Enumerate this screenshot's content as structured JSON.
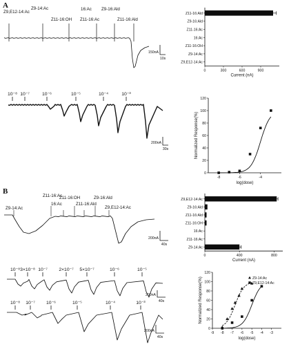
{
  "panel_A": {
    "label": "A",
    "trace_labels": [
      "Z9,E12-14:Ac",
      "Z9-14:Ac",
      "Z11-16:OH",
      "16:Ac",
      "Z11-16:Ac",
      "Z9-16:Ald",
      "Z11-16:Ald"
    ],
    "trace_scale": {
      "amplitude": "150nA",
      "time": "10s"
    },
    "dose_labels": [
      "10⁻⁸",
      "10⁻⁷",
      "10⁻⁶",
      "10⁻⁵",
      "10⁻⁴",
      "10⁻³"
    ],
    "dose_scale": {
      "amplitude": "200nA",
      "time": "30s"
    }
  },
  "panel_B": {
    "label": "B",
    "trace_labels": [
      "Z9-14:Ac",
      "Z11-16:Ac",
      "16:Ac",
      "Z11-16:OH",
      "Z11-16:Ald",
      "Z9-16:Ald",
      "Z9,E12-14:Ac"
    ],
    "trace_scale": {
      "amplitude": "200nA",
      "time": "40s"
    },
    "dose_row1_labels": [
      "10⁻⁸",
      "3×10⁻⁸",
      "10⁻⁷",
      "2×10⁻⁷",
      "5×10⁻⁷",
      "10⁻⁶",
      "10⁻⁵"
    ],
    "dose_row1_scale": {
      "amplitude": "200nA",
      "time": "40s"
    },
    "dose_row2_labels": [
      "10⁻⁸",
      "10⁻⁷",
      "10⁻⁶",
      "10⁻⁵",
      "10⁻⁴",
      "10⁻³"
    ],
    "dose_row2_scale": {
      "amplitude": "200nA",
      "time": "40s"
    }
  },
  "chart_data": [
    {
      "type": "bar",
      "orientation": "horizontal",
      "panel": "A",
      "categories": [
        "Z11-16:Ald",
        "Z9-16:Ald",
        "Z11-16:Ac",
        "16:Ac",
        "Z11-16:OH",
        "Z9-14:Ac",
        "Z9,E12-14:Ac"
      ],
      "values": [
        1100,
        0,
        0,
        0,
        0,
        0,
        0
      ],
      "errors": [
        50,
        0,
        0,
        0,
        0,
        0,
        0
      ],
      "xlabel": "Current (nA)",
      "xlim": [
        0,
        1200
      ],
      "xticks": [
        "0",
        "300",
        "600",
        "900"
      ]
    },
    {
      "type": "line",
      "panel": "A",
      "xlabel": "log(dose)",
      "ylabel": "Normalized Response(%)",
      "xlim": [
        -9,
        -2
      ],
      "ylim": [
        0,
        120
      ],
      "xticks": [
        "-8",
        "-6",
        "-4"
      ],
      "yticks": [
        "0",
        "20",
        "40",
        "60",
        "80",
        "100",
        "120"
      ],
      "series": [
        {
          "x": [
            -8,
            -7,
            -6,
            -5,
            -4,
            -3
          ],
          "y": [
            0,
            1,
            3,
            30,
            72,
            100
          ],
          "color": "#111111"
        }
      ]
    },
    {
      "type": "bar",
      "orientation": "horizontal",
      "panel": "B",
      "categories": [
        "Z9,E12-14:Ac",
        "Z9-16:Ald",
        "Z11-16:Ald",
        "Z11-16:OH",
        "16:Ac",
        "Z11-16:Ac",
        "Z9-14:Ac"
      ],
      "values": [
        830,
        30,
        20,
        20,
        0,
        0,
        400
      ],
      "errors": [
        15,
        0,
        0,
        0,
        0,
        0,
        20
      ],
      "xlabel": "Current (nA)",
      "xlim": [
        0,
        900
      ],
      "xticks": [
        "0",
        "400",
        "800"
      ]
    },
    {
      "type": "line",
      "panel": "B",
      "xlabel": "log(dose)",
      "ylabel": "Normalized Response(%)",
      "xlim": [
        -9,
        -2
      ],
      "ylim": [
        0,
        120
      ],
      "xticks": [
        "-9",
        "-8",
        "-7",
        "-6",
        "-5",
        "-4",
        "-3"
      ],
      "yticks": [
        "0",
        "20",
        "40",
        "60",
        "80",
        "100",
        "120"
      ],
      "legend_position": "top-right",
      "series": [
        {
          "name": "Z9-14:Ac",
          "marker": "triangle",
          "line": "dashed",
          "color": "#111111",
          "x": [
            -8,
            -7.5,
            -7,
            -6.7,
            -6.3,
            -6,
            -5
          ],
          "y": [
            2,
            20,
            42,
            55,
            70,
            85,
            96
          ]
        },
        {
          "name": "Z9,E12-14:Ac",
          "marker": "square",
          "line": "solid",
          "color": "#111111",
          "x": [
            -8,
            -7,
            -6,
            -5,
            -4
          ],
          "y": [
            0,
            12,
            25,
            60,
            90
          ]
        }
      ]
    }
  ]
}
